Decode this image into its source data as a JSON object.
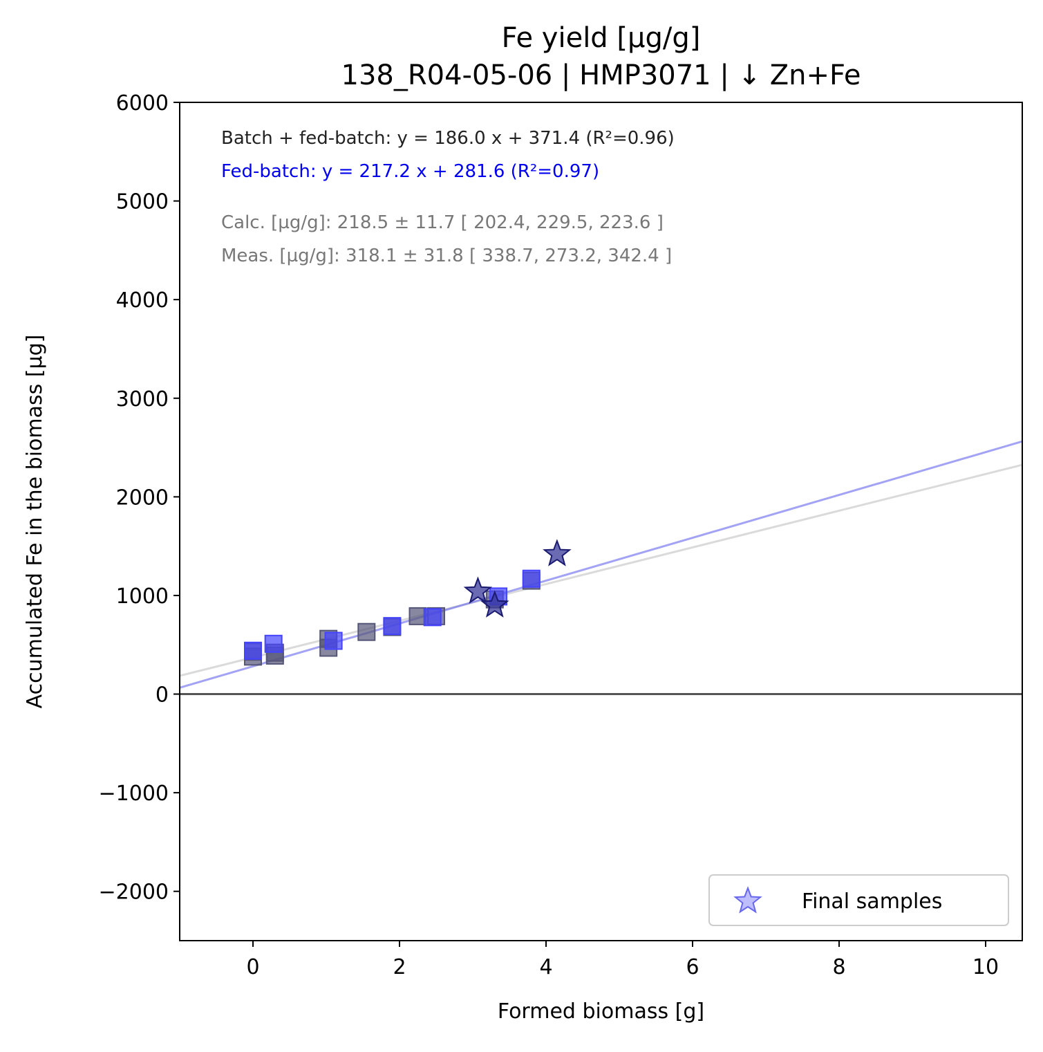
{
  "chart_data": {
    "type": "scatter",
    "title": "Fe yield [µg/g]",
    "subtitle": "138_R04-05-06  |  HMP3071  |  ↓ Zn+Fe",
    "xlabel": "Formed biomass [g]",
    "ylabel": "Accumulated Fe in the biomass [µg]",
    "xlim": [
      -1.0,
      10.5
    ],
    "ylim": [
      -2500,
      6000
    ],
    "xticks": [
      0,
      2,
      4,
      6,
      8,
      10
    ],
    "yticks": [
      -2000,
      -1000,
      0,
      1000,
      2000,
      3000,
      4000,
      5000,
      6000
    ],
    "xtick_labels": [
      "0",
      "2",
      "4",
      "6",
      "8",
      "10"
    ],
    "ytick_labels": [
      "−2000",
      "−1000",
      "0",
      "1000",
      "2000",
      "3000",
      "4000",
      "5000",
      "6000"
    ],
    "grid": false,
    "annotations": {
      "fit_all": "Batch + fed-batch: y = 186.0 x + 371.4 (R²=0.96)",
      "fit_fed": "Fed-batch: y = 217.2 x + 281.6 (R²=0.97)",
      "calc": "Calc. [µg/g]: 218.5 ± 11.7 [ 202.4, 229.5, 223.6 ]",
      "meas": "Meas. [µg/g]: 318.1 ± 31.8 [ 338.7, 273.2, 342.4 ]"
    },
    "lines": [
      {
        "role": "fit-batch-fed-batch",
        "slope": 186.0,
        "intercept": 371.4,
        "color": "#bbbbbb"
      },
      {
        "role": "fit-fed-batch",
        "slope": 217.2,
        "intercept": 281.6,
        "color": "#6666ee"
      },
      {
        "role": "zero-line",
        "y": 0,
        "color": "#555555"
      }
    ],
    "series": [
      {
        "marker": "square",
        "color": "#555577",
        "points": [
          [
            0.0,
            430
          ],
          [
            0.0,
            380
          ],
          [
            0.3,
            420
          ],
          [
            0.3,
            390
          ],
          [
            1.03,
            560
          ],
          [
            1.03,
            470
          ],
          [
            1.55,
            630
          ],
          [
            1.9,
            680
          ],
          [
            2.25,
            790
          ],
          [
            2.5,
            790
          ],
          [
            3.3,
            960
          ],
          [
            3.8,
            1150
          ]
        ]
      },
      {
        "marker": "square",
        "color": "#4444ff",
        "points": [
          [
            0.0,
            440
          ],
          [
            0.28,
            510
          ],
          [
            1.1,
            540
          ],
          [
            1.9,
            690
          ],
          [
            2.45,
            780
          ],
          [
            3.35,
            990
          ],
          [
            3.8,
            1170
          ]
        ]
      },
      {
        "name": "Final samples",
        "marker": "star",
        "color": "#3a3a9a",
        "points": [
          [
            3.07,
            1040
          ],
          [
            3.3,
            900
          ],
          [
            4.15,
            1420
          ]
        ]
      }
    ],
    "legend": {
      "placement": "lower-right",
      "entries": [
        "Final samples"
      ]
    }
  }
}
